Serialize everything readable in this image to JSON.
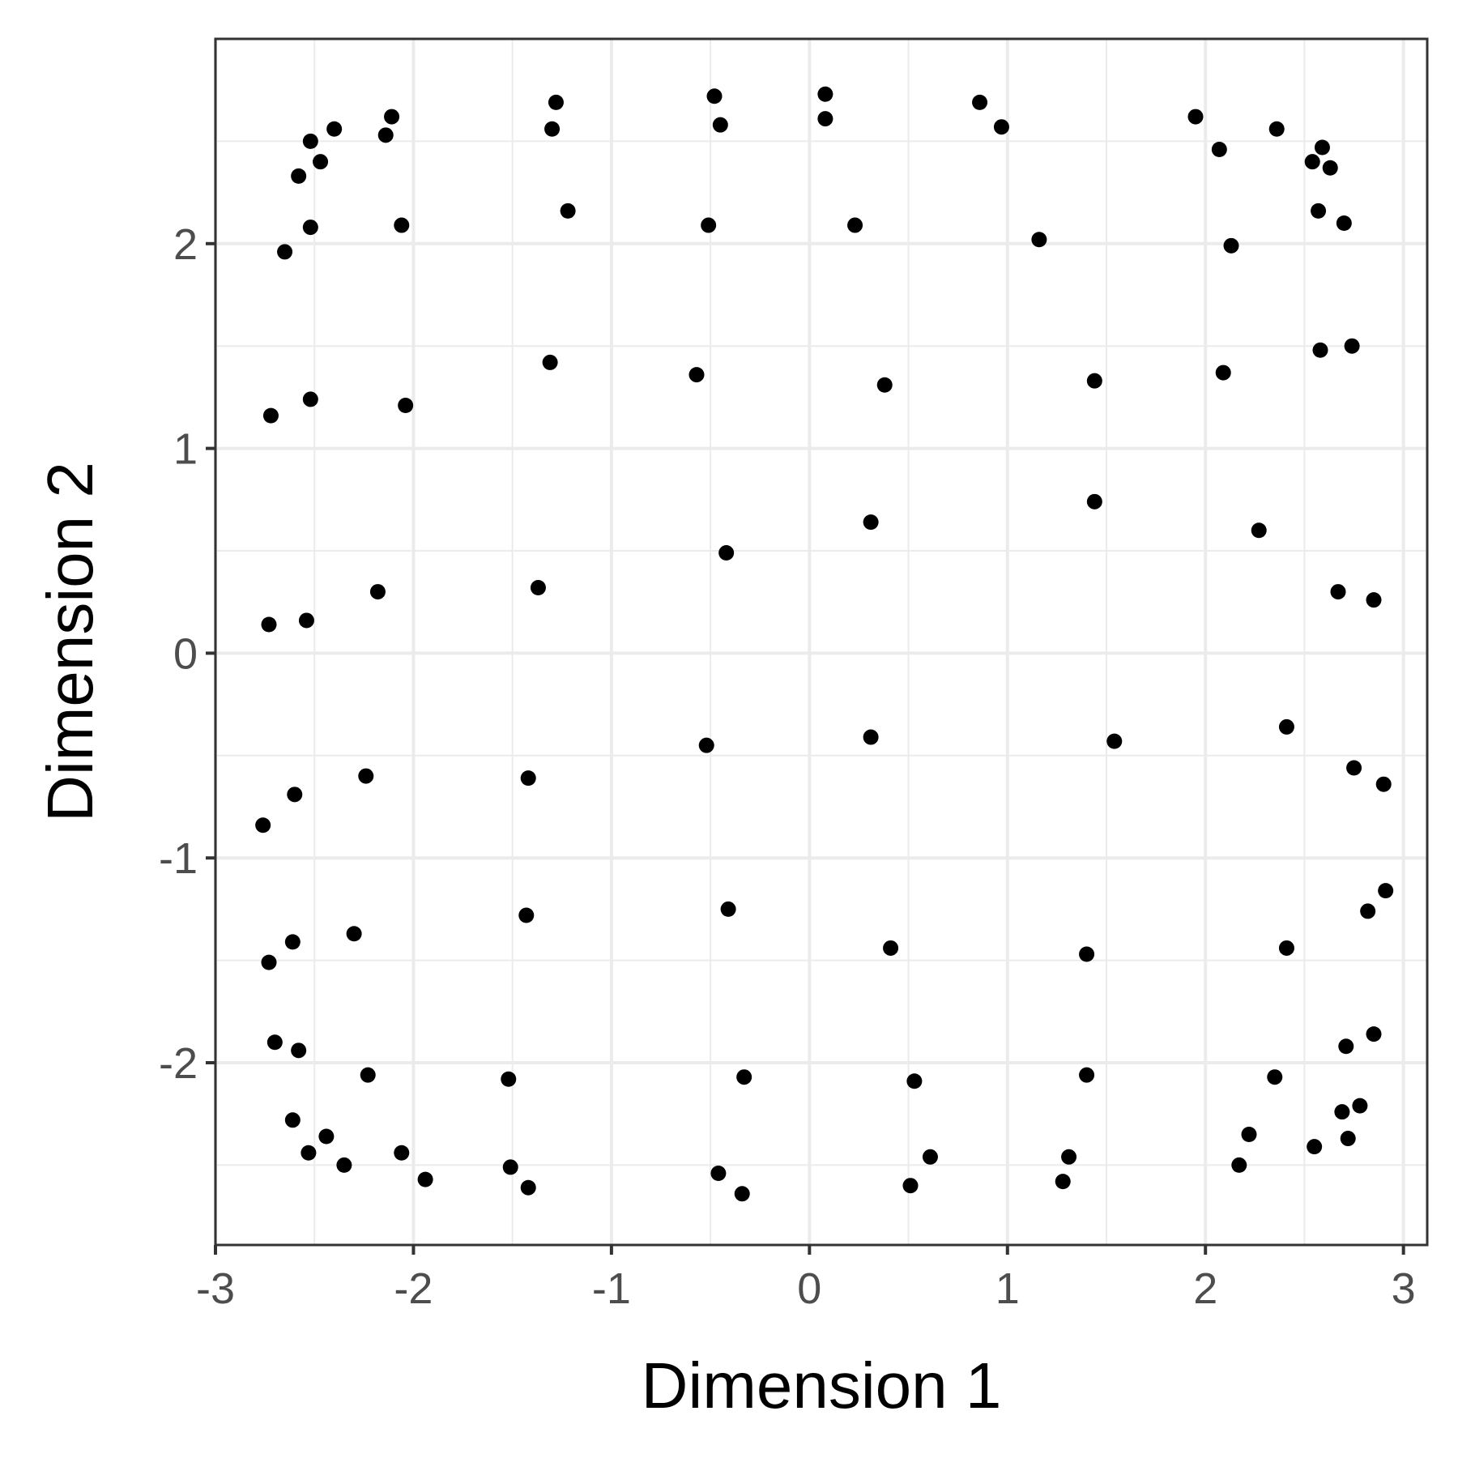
{
  "chart_data": {
    "type": "scatter",
    "title": "",
    "xlabel": "Dimension 1",
    "ylabel": "Dimension 2",
    "xlim": [
      -3.0,
      3.12
    ],
    "ylim": [
      -2.89,
      3.0
    ],
    "xticks": [
      -3,
      -2,
      -1,
      0,
      1,
      2,
      3
    ],
    "yticks": [
      -2,
      -1,
      0,
      1,
      2
    ],
    "xtick_labels": [
      "-3",
      "-2",
      "-1",
      "0",
      "1",
      "2",
      "3"
    ],
    "ytick_labels": [
      "-2",
      "-1",
      "0",
      "1",
      "2"
    ],
    "grid": true,
    "legend": "none",
    "colors": {
      "point": "#000000",
      "panel_border": "#333333",
      "grid": "#ebebeb",
      "tick_text": "#4d4d4d",
      "axis_title": "#000000"
    },
    "points": [
      [
        -2.52,
        2.5
      ],
      [
        -2.4,
        2.56
      ],
      [
        -2.11,
        2.62
      ],
      [
        -2.14,
        2.53
      ],
      [
        -2.47,
        2.4
      ],
      [
        -2.58,
        2.33
      ],
      [
        -2.52,
        2.08
      ],
      [
        -2.06,
        2.09
      ],
      [
        -2.65,
        1.96
      ],
      [
        -1.28,
        2.69
      ],
      [
        -1.3,
        2.56
      ],
      [
        -1.22,
        2.16
      ],
      [
        -0.48,
        2.72
      ],
      [
        -0.45,
        2.58
      ],
      [
        -0.51,
        2.09
      ],
      [
        0.08,
        2.73
      ],
      [
        0.08,
        2.61
      ],
      [
        0.23,
        2.09
      ],
      [
        0.86,
        2.69
      ],
      [
        0.97,
        2.57
      ],
      [
        1.16,
        2.02
      ],
      [
        1.95,
        2.62
      ],
      [
        2.07,
        2.46
      ],
      [
        2.13,
        1.99
      ],
      [
        2.36,
        2.56
      ],
      [
        2.54,
        2.4
      ],
      [
        2.59,
        2.47
      ],
      [
        2.63,
        2.37
      ],
      [
        2.57,
        2.16
      ],
      [
        2.7,
        2.1
      ],
      [
        2.58,
        1.48
      ],
      [
        2.74,
        1.5
      ],
      [
        -2.72,
        1.16
      ],
      [
        -2.52,
        1.24
      ],
      [
        -2.04,
        1.21
      ],
      [
        -1.31,
        1.42
      ],
      [
        -0.57,
        1.36
      ],
      [
        0.38,
        1.31
      ],
      [
        1.44,
        1.33
      ],
      [
        2.09,
        1.37
      ],
      [
        1.44,
        0.74
      ],
      [
        0.31,
        0.64
      ],
      [
        -0.42,
        0.49
      ],
      [
        2.27,
        0.6
      ],
      [
        -1.37,
        0.32
      ],
      [
        -2.18,
        0.3
      ],
      [
        -2.54,
        0.16
      ],
      [
        -2.73,
        0.14
      ],
      [
        2.67,
        0.3
      ],
      [
        2.85,
        0.26
      ],
      [
        -2.76,
        -0.84
      ],
      [
        -2.6,
        -0.69
      ],
      [
        -2.24,
        -0.6
      ],
      [
        -1.42,
        -0.61
      ],
      [
        -0.52,
        -0.45
      ],
      [
        0.31,
        -0.41
      ],
      [
        1.54,
        -0.43
      ],
      [
        2.41,
        -0.36
      ],
      [
        2.75,
        -0.56
      ],
      [
        2.9,
        -0.64
      ],
      [
        -2.73,
        -1.51
      ],
      [
        -2.61,
        -1.41
      ],
      [
        -2.3,
        -1.37
      ],
      [
        -1.43,
        -1.28
      ],
      [
        -0.41,
        -1.25
      ],
      [
        0.41,
        -1.44
      ],
      [
        1.4,
        -1.47
      ],
      [
        2.41,
        -1.44
      ],
      [
        2.82,
        -1.26
      ],
      [
        2.91,
        -1.16
      ],
      [
        -2.7,
        -1.9
      ],
      [
        -2.58,
        -1.94
      ],
      [
        -2.23,
        -2.06
      ],
      [
        -1.52,
        -2.08
      ],
      [
        -0.33,
        -2.07
      ],
      [
        0.53,
        -2.09
      ],
      [
        1.4,
        -2.06
      ],
      [
        2.35,
        -2.07
      ],
      [
        2.71,
        -1.92
      ],
      [
        2.85,
        -1.86
      ],
      [
        -2.61,
        -2.28
      ],
      [
        -2.44,
        -2.36
      ],
      [
        -2.53,
        -2.44
      ],
      [
        -2.35,
        -2.5
      ],
      [
        -2.06,
        -2.44
      ],
      [
        -1.94,
        -2.57
      ],
      [
        -1.51,
        -2.51
      ],
      [
        -1.42,
        -2.61
      ],
      [
        -0.46,
        -2.54
      ],
      [
        -0.34,
        -2.64
      ],
      [
        0.51,
        -2.6
      ],
      [
        0.61,
        -2.46
      ],
      [
        1.28,
        -2.58
      ],
      [
        1.31,
        -2.46
      ],
      [
        2.17,
        -2.5
      ],
      [
        2.22,
        -2.35
      ],
      [
        2.55,
        -2.41
      ],
      [
        2.69,
        -2.24
      ],
      [
        2.72,
        -2.37
      ],
      [
        2.78,
        -2.21
      ]
    ]
  }
}
